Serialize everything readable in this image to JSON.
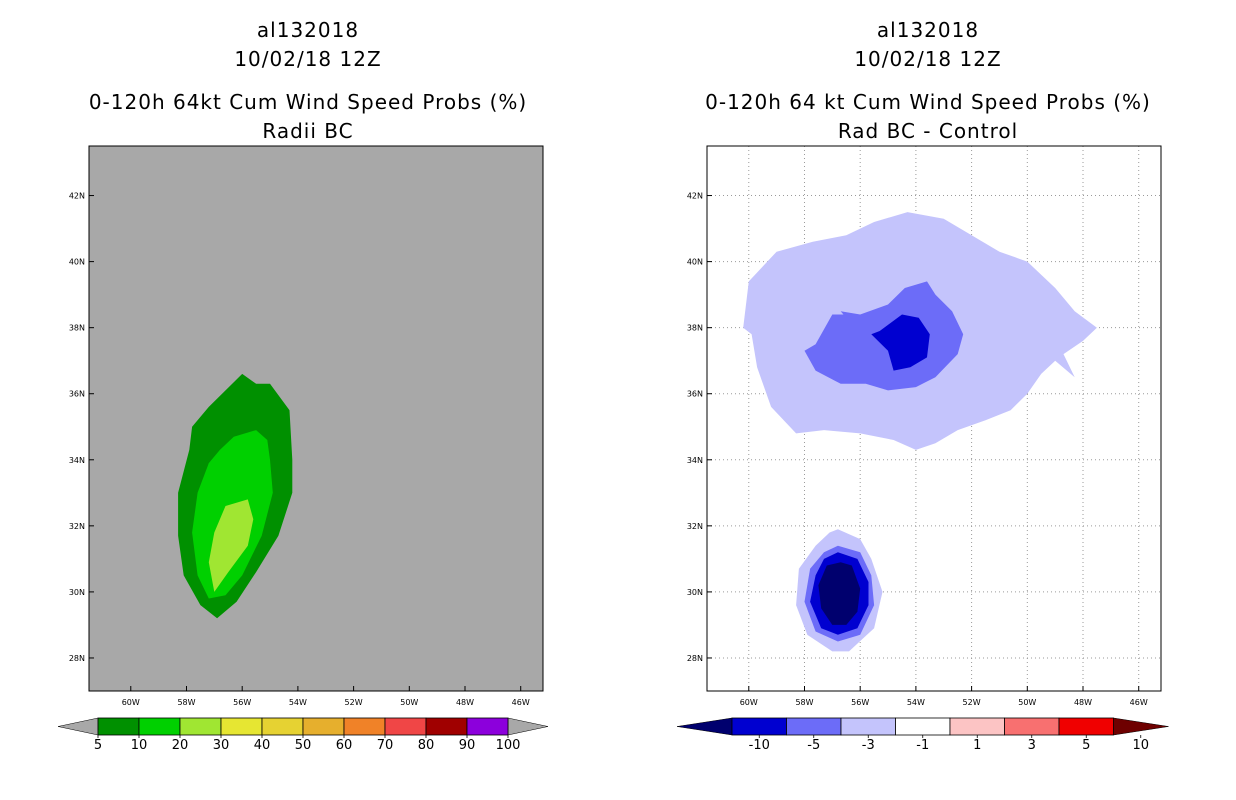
{
  "chart_data": [
    {
      "type": "heatmap",
      "subtype": "filled-contour-map",
      "title_lines": [
        "al132018",
        "10/02/18 12Z"
      ],
      "subtitle_lines": [
        "0-120h 64kt Cum Wind Speed Probs (%)",
        "Radii BC"
      ],
      "x_ticks": [
        "60W",
        "58W",
        "56W",
        "54W",
        "52W",
        "50W",
        "48W",
        "46W"
      ],
      "x_tick_values": [
        -60,
        -58,
        -56,
        -54,
        -52,
        -50,
        -48,
        -46
      ],
      "y_ticks": [
        "28N",
        "30N",
        "32N",
        "34N",
        "36N",
        "38N",
        "40N",
        "42N"
      ],
      "y_tick_values": [
        28,
        30,
        32,
        34,
        36,
        38,
        40,
        42
      ],
      "xlim": [
        -61.5,
        -45.2
      ],
      "ylim": [
        27.0,
        43.5
      ],
      "grid": false,
      "background_color": "#a8a8a8",
      "colorbar": {
        "labels": [
          "5",
          "10",
          "20",
          "30",
          "40",
          "50",
          "60",
          "70",
          "80",
          "90",
          "100"
        ],
        "colors": [
          "#009000",
          "#00d000",
          "#a0e632",
          "#e6e632",
          "#e6d232",
          "#e6af2d",
          "#f08228",
          "#f04646",
          "#a00000",
          "#8c00dc"
        ],
        "end_color": "#a8a8a8"
      },
      "contours": [
        {
          "level": "5-10",
          "color": "#009000",
          "points": [
            [
              -57.2,
              35.6
            ],
            [
              -56.0,
              36.6
            ],
            [
              -55.5,
              36.3
            ],
            [
              -55.0,
              36.3
            ],
            [
              -54.3,
              35.5
            ],
            [
              -54.2,
              34.0
            ],
            [
              -54.2,
              33.0
            ],
            [
              -54.7,
              31.7
            ],
            [
              -55.5,
              30.6
            ],
            [
              -56.2,
              29.7
            ],
            [
              -56.9,
              29.2
            ],
            [
              -57.5,
              29.6
            ],
            [
              -58.1,
              30.5
            ],
            [
              -58.3,
              31.7
            ],
            [
              -58.3,
              33.0
            ],
            [
              -57.9,
              34.3
            ],
            [
              -57.8,
              35.0
            ]
          ]
        },
        {
          "level": "10-20",
          "color": "#00d000",
          "points": [
            [
              -56.3,
              34.7
            ],
            [
              -55.5,
              34.9
            ],
            [
              -55.1,
              34.6
            ],
            [
              -55.0,
              34.0
            ],
            [
              -54.9,
              33.0
            ],
            [
              -55.3,
              31.7
            ],
            [
              -56.0,
              30.5
            ],
            [
              -56.6,
              29.9
            ],
            [
              -57.2,
              29.8
            ],
            [
              -57.6,
              30.5
            ],
            [
              -57.8,
              31.8
            ],
            [
              -57.6,
              33.0
            ],
            [
              -57.2,
              33.9
            ],
            [
              -56.8,
              34.3
            ]
          ]
        },
        {
          "level": "20-30",
          "color": "#a0e632",
          "points": [
            [
              -56.6,
              32.6
            ],
            [
              -55.8,
              32.8
            ],
            [
              -55.6,
              32.2
            ],
            [
              -55.8,
              31.4
            ],
            [
              -56.5,
              30.6
            ],
            [
              -57.0,
              30.0
            ],
            [
              -57.2,
              30.9
            ],
            [
              -57.0,
              31.8
            ],
            [
              -56.8,
              32.2
            ]
          ]
        }
      ]
    },
    {
      "type": "heatmap",
      "subtype": "filled-contour-map",
      "title_lines": [
        "al132018",
        "10/02/18 12Z"
      ],
      "subtitle_lines": [
        "0-120h 64 kt Cum Wind Speed Probs (%)",
        "Rad BC - Control"
      ],
      "x_ticks": [
        "60W",
        "58W",
        "56W",
        "54W",
        "52W",
        "50W",
        "48W",
        "46W"
      ],
      "x_tick_values": [
        -60,
        -58,
        -56,
        -54,
        -52,
        -50,
        -48,
        -46
      ],
      "y_ticks": [
        "28N",
        "30N",
        "32N",
        "34N",
        "36N",
        "38N",
        "40N",
        "42N"
      ],
      "y_tick_values": [
        28,
        30,
        32,
        34,
        36,
        38,
        40,
        42
      ],
      "xlim": [
        -61.5,
        -45.2
      ],
      "ylim": [
        27.0,
        43.5
      ],
      "grid": true,
      "background_color": "#ffffff",
      "colorbar": {
        "labels": [
          "-10",
          "-5",
          "-3",
          "-1",
          "1",
          "3",
          "5",
          "10"
        ],
        "colors": [
          "#0000d0",
          "#6c6cf8",
          "#c4c4fc",
          "#ffffff",
          "#fcc4c4",
          "#f87070",
          "#f00000"
        ],
        "low_end_color": "#00006e",
        "high_end_color": "#6e0000"
      },
      "contours": [
        {
          "level": "-3 to -1",
          "color": "#c4c4fc",
          "points": [
            [
              -60.0,
              39.4
            ],
            [
              -59.0,
              40.3
            ],
            [
              -57.7,
              40.6
            ],
            [
              -56.5,
              40.8
            ],
            [
              -55.5,
              41.2
            ],
            [
              -54.3,
              41.5
            ],
            [
              -53.0,
              41.3
            ],
            [
              -52.0,
              40.8
            ],
            [
              -51.0,
              40.3
            ],
            [
              -50.0,
              40.0
            ],
            [
              -49.0,
              39.2
            ],
            [
              -48.3,
              38.5
            ],
            [
              -47.5,
              38.0
            ],
            [
              -48.0,
              37.6
            ],
            [
              -48.7,
              37.2
            ],
            [
              -48.3,
              36.5
            ],
            [
              -49.0,
              37.0
            ],
            [
              -49.5,
              36.6
            ],
            [
              -50.0,
              36.0
            ],
            [
              -50.6,
              35.5
            ],
            [
              -51.5,
              35.2
            ],
            [
              -52.5,
              34.9
            ],
            [
              -53.3,
              34.5
            ],
            [
              -54.0,
              34.3
            ],
            [
              -54.8,
              34.6
            ],
            [
              -56.0,
              34.8
            ],
            [
              -57.3,
              34.9
            ],
            [
              -58.3,
              34.8
            ],
            [
              -59.2,
              35.6
            ],
            [
              -59.7,
              36.8
            ],
            [
              -59.9,
              37.8
            ],
            [
              -60.2,
              38.0
            ]
          ]
        },
        {
          "level": "-5 to -3",
          "color": "#6c6cf8",
          "points": [
            [
              -57.6,
              37.5
            ],
            [
              -57.0,
              38.4
            ],
            [
              -56.0,
              38.4
            ],
            [
              -55.0,
              38.7
            ],
            [
              -54.4,
              39.2
            ],
            [
              -53.6,
              39.4
            ],
            [
              -53.3,
              39.0
            ],
            [
              -52.7,
              38.5
            ],
            [
              -52.3,
              37.8
            ],
            [
              -52.5,
              37.2
            ],
            [
              -53.3,
              36.5
            ],
            [
              -54.0,
              36.2
            ],
            [
              -55.0,
              36.1
            ],
            [
              -55.8,
              36.3
            ],
            [
              -56.7,
              36.3
            ],
            [
              -57.6,
              36.7
            ],
            [
              -58.0,
              37.3
            ]
          ]
        },
        {
          "level": "-10 to -5",
          "color": "#0000d0",
          "points": [
            [
              -55.3,
              37.9
            ],
            [
              -54.5,
              38.4
            ],
            [
              -53.9,
              38.3
            ],
            [
              -53.5,
              37.8
            ],
            [
              -53.6,
              37.1
            ],
            [
              -54.2,
              36.8
            ],
            [
              -54.8,
              36.7
            ],
            [
              -55.0,
              37.3
            ],
            [
              -55.6,
              37.8
            ]
          ]
        },
        {
          "level": "-3 to -1",
          "color": "#c4c4fc",
          "points": [
            [
              -56.8,
              31.9
            ],
            [
              -56.0,
              31.6
            ],
            [
              -55.6,
              31.0
            ],
            [
              -55.2,
              30.0
            ],
            [
              -55.5,
              28.9
            ],
            [
              -56.4,
              28.2
            ],
            [
              -57.0,
              28.2
            ],
            [
              -57.9,
              28.7
            ],
            [
              -58.3,
              29.6
            ],
            [
              -58.2,
              30.7
            ],
            [
              -57.6,
              31.4
            ],
            [
              -57.1,
              31.8
            ]
          ]
        },
        {
          "level": "-5 to -3",
          "color": "#6c6cf8",
          "points": [
            [
              -56.8,
              31.4
            ],
            [
              -56.0,
              31.2
            ],
            [
              -55.6,
              30.5
            ],
            [
              -55.5,
              29.6
            ],
            [
              -56.0,
              28.7
            ],
            [
              -56.8,
              28.5
            ],
            [
              -57.6,
              28.8
            ],
            [
              -58.0,
              29.7
            ],
            [
              -57.8,
              30.7
            ],
            [
              -57.3,
              31.2
            ]
          ]
        },
        {
          "level": "-10 to -5",
          "color": "#0000d0",
          "points": [
            [
              -56.8,
              31.2
            ],
            [
              -56.1,
              31.0
            ],
            [
              -55.7,
              30.3
            ],
            [
              -55.7,
              29.6
            ],
            [
              -56.1,
              28.9
            ],
            [
              -56.8,
              28.7
            ],
            [
              -57.4,
              28.9
            ],
            [
              -57.8,
              29.7
            ],
            [
              -57.6,
              30.5
            ],
            [
              -57.3,
              31.0
            ]
          ]
        },
        {
          "level": "< -10",
          "color": "#00006e",
          "points": [
            [
              -56.7,
              30.9
            ],
            [
              -56.3,
              30.8
            ],
            [
              -56.0,
              30.1
            ],
            [
              -56.1,
              29.4
            ],
            [
              -56.5,
              29.0
            ],
            [
              -57.0,
              29.0
            ],
            [
              -57.4,
              29.5
            ],
            [
              -57.5,
              30.2
            ],
            [
              -57.2,
              30.8
            ]
          ]
        },
        {
          "level": "-3 to -1",
          "color": "#c4c4fc",
          "points": [
            [
              -52.0,
              36.5
            ],
            [
              -51.7,
              36.5
            ],
            [
              -52.0,
              36.4
            ]
          ]
        },
        {
          "level": "-5 to -3",
          "color": "#6c6cf8",
          "points": [
            [
              -56.7,
              38.5
            ],
            [
              -56.3,
              38.1
            ],
            [
              -56.0,
              38.4
            ]
          ]
        }
      ]
    }
  ]
}
